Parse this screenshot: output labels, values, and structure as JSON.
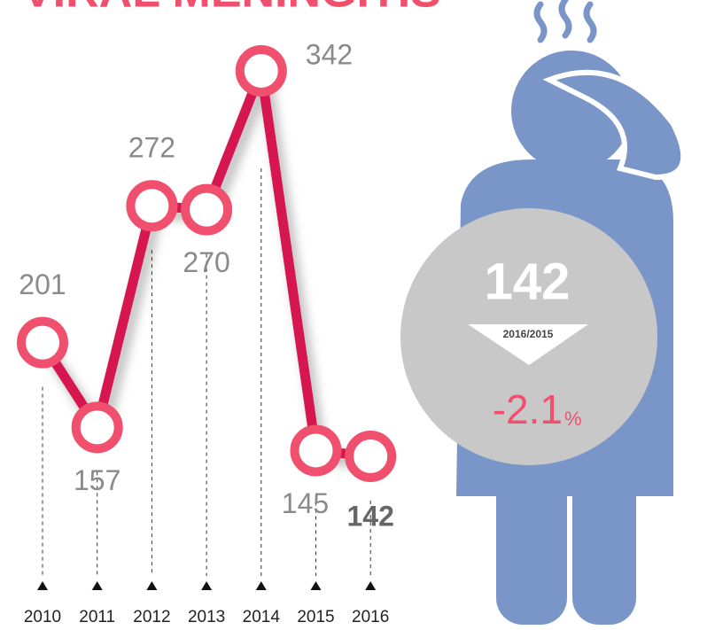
{
  "chart_data": {
    "type": "line",
    "title": "VIRAL MENINGITIS",
    "categories": [
      "2010",
      "2011",
      "2012",
      "2013",
      "2014",
      "2015",
      "2016"
    ],
    "values": [
      201,
      157,
      272,
      270,
      342,
      145,
      142
    ],
    "color": "#d6184f",
    "marker_color": "#f0506e"
  },
  "callout": {
    "value": 142,
    "period": "2016/2015",
    "change": -2.1,
    "unit": "%"
  }
}
